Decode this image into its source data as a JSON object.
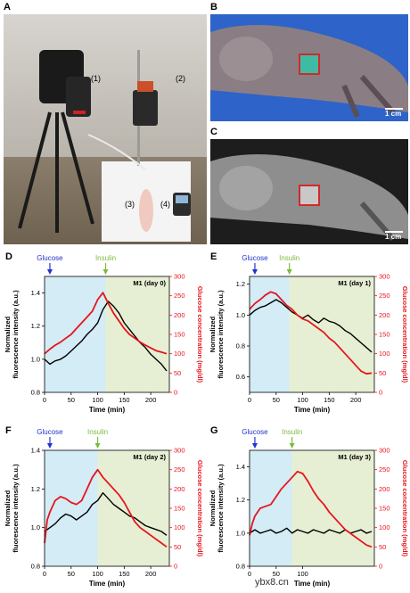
{
  "panels": {
    "A": {
      "letter": "A",
      "labels": [
        "(1)",
        "(2)",
        "(3)",
        "(4)"
      ]
    },
    "B": {
      "letter": "B",
      "scale": "1 cm"
    },
    "C": {
      "letter": "C",
      "scale": "1 cm"
    }
  },
  "arrows": {
    "glucose": "Glucose",
    "insulin": "Insulin"
  },
  "colors": {
    "fluor": "#000000",
    "glucose": "#e8141c",
    "glucose_bg": "#d3ecf6",
    "insulin_bg": "#e6efd3",
    "arrow_glucose": "#2233cc",
    "arrow_insulin": "#7dbb3c"
  },
  "chart_data": [
    {
      "panel": "D",
      "type": "line",
      "title": "M1 (day 0)",
      "xlabel": "Time (min)",
      "ylabel": "Normalized fluorescence intensity (a.u.)",
      "y2label": "Glucose concentration (mg/dl)",
      "xlim": [
        0,
        235
      ],
      "ylim": [
        0.8,
        1.5
      ],
      "y2lim": [
        0,
        300
      ],
      "xticks": [
        0,
        50,
        100,
        150,
        200
      ],
      "yticks": [
        0.8,
        1.0,
        1.2,
        1.4
      ],
      "y2ticks": [
        0,
        50,
        100,
        150,
        200,
        250,
        300
      ],
      "glucose_at": 10,
      "insulin_at": 115,
      "series": [
        {
          "axis": "left",
          "color": "#000000",
          "x": [
            0,
            10,
            20,
            30,
            40,
            50,
            60,
            70,
            80,
            90,
            100,
            110,
            120,
            130,
            140,
            150,
            160,
            170,
            180,
            190,
            200,
            210,
            220,
            230
          ],
          "y": [
            1.0,
            0.97,
            0.99,
            1.0,
            1.02,
            1.05,
            1.08,
            1.11,
            1.15,
            1.18,
            1.22,
            1.3,
            1.35,
            1.32,
            1.28,
            1.22,
            1.18,
            1.14,
            1.1,
            1.07,
            1.03,
            1.0,
            0.97,
            0.93
          ]
        },
        {
          "axis": "right",
          "color": "#e8141c",
          "x": [
            0,
            10,
            20,
            30,
            40,
            50,
            60,
            70,
            80,
            90,
            100,
            110,
            120,
            130,
            140,
            150,
            160,
            170,
            180,
            190,
            200,
            210,
            220,
            230
          ],
          "y": [
            100,
            112,
            122,
            130,
            140,
            150,
            165,
            180,
            195,
            210,
            240,
            258,
            230,
            205,
            185,
            165,
            150,
            140,
            130,
            122,
            115,
            108,
            104,
            100
          ]
        }
      ]
    },
    {
      "panel": "E",
      "type": "line",
      "title": "M1 (day 1)",
      "xlabel": "Time (min)",
      "ylabel": "Normalized fluorescence intensity (a.u.)",
      "y2label": "Glucose concentration (mg/dl)",
      "xlim": [
        0,
        235
      ],
      "ylim": [
        0.5,
        1.25
      ],
      "y2lim": [
        0,
        300
      ],
      "xticks": [
        0,
        50,
        100,
        150,
        200
      ],
      "yticks": [
        0.6,
        0.8,
        1.0,
        1.2
      ],
      "y2ticks": [
        0,
        50,
        100,
        150,
        200,
        250,
        300
      ],
      "glucose_at": 10,
      "insulin_at": 75,
      "series": [
        {
          "axis": "left",
          "color": "#000000",
          "x": [
            0,
            10,
            20,
            30,
            40,
            50,
            60,
            70,
            80,
            90,
            100,
            110,
            120,
            130,
            140,
            150,
            160,
            170,
            180,
            190,
            200,
            210,
            220,
            230
          ],
          "y": [
            1.0,
            1.03,
            1.05,
            1.06,
            1.08,
            1.1,
            1.08,
            1.05,
            1.02,
            1.0,
            0.98,
            1.0,
            0.97,
            0.95,
            0.98,
            0.96,
            0.95,
            0.93,
            0.9,
            0.88,
            0.85,
            0.82,
            0.79,
            0.76
          ]
        },
        {
          "axis": "right",
          "color": "#e8141c",
          "x": [
            0,
            10,
            20,
            30,
            40,
            50,
            60,
            70,
            80,
            90,
            100,
            110,
            120,
            130,
            140,
            150,
            160,
            170,
            180,
            190,
            200,
            210,
            220,
            230
          ],
          "y": [
            215,
            230,
            240,
            252,
            260,
            255,
            240,
            225,
            215,
            200,
            190,
            185,
            175,
            165,
            155,
            140,
            130,
            115,
            100,
            85,
            70,
            55,
            48,
            50
          ]
        }
      ]
    },
    {
      "panel": "F",
      "type": "line",
      "title": "M1 (day 2)",
      "xlabel": "Time (min)",
      "ylabel": "Normalized fluorescence intensity (a.u.)",
      "y2label": "Glucose concentration (mg/dl)",
      "xlim": [
        0,
        235
      ],
      "ylim": [
        0.8,
        1.4
      ],
      "y2lim": [
        0,
        300
      ],
      "xticks": [
        0,
        50,
        100,
        150,
        200
      ],
      "yticks": [
        0.8,
        1.0,
        1.2,
        1.4
      ],
      "y2ticks": [
        0,
        50,
        100,
        150,
        200,
        250,
        300
      ],
      "glucose_at": 10,
      "insulin_at": 100,
      "series": [
        {
          "axis": "left",
          "color": "#000000",
          "x": [
            0,
            10,
            20,
            30,
            40,
            50,
            60,
            70,
            80,
            90,
            100,
            110,
            120,
            130,
            140,
            150,
            160,
            170,
            180,
            190,
            200,
            210,
            220,
            230
          ],
          "y": [
            0.98,
            1.0,
            1.02,
            1.05,
            1.07,
            1.06,
            1.04,
            1.06,
            1.08,
            1.12,
            1.14,
            1.18,
            1.15,
            1.12,
            1.1,
            1.08,
            1.06,
            1.05,
            1.03,
            1.01,
            1.0,
            0.99,
            0.98,
            0.96
          ]
        },
        {
          "axis": "right",
          "color": "#e8141c",
          "x": [
            0,
            5,
            10,
            20,
            30,
            40,
            50,
            60,
            70,
            80,
            90,
            100,
            110,
            120,
            130,
            140,
            150,
            160,
            170,
            180,
            190,
            200,
            210,
            220,
            230
          ],
          "y": [
            60,
            120,
            140,
            170,
            180,
            175,
            165,
            160,
            170,
            200,
            230,
            250,
            230,
            215,
            200,
            185,
            165,
            140,
            115,
            100,
            90,
            80,
            70,
            60,
            50
          ]
        }
      ]
    },
    {
      "panel": "G",
      "type": "line",
      "title": "M1 (day 3)",
      "xlabel": "Time (min)",
      "ylabel": "Normalized fluorescence intensity (a.u.)",
      "y2label": "Glucose concentration (mg/dl)",
      "xlim": [
        0,
        235
      ],
      "ylim": [
        0.8,
        1.5
      ],
      "y2lim": [
        0,
        300
      ],
      "xticks": [
        0,
        50,
        100
      ],
      "yticks": [
        0.8,
        1.0,
        1.2,
        1.4
      ],
      "y2ticks": [
        0,
        50,
        100,
        150,
        200,
        250,
        300
      ],
      "glucose_at": 10,
      "insulin_at": 80,
      "series": [
        {
          "axis": "left",
          "color": "#000000",
          "x": [
            0,
            10,
            20,
            30,
            40,
            50,
            60,
            70,
            80,
            90,
            100,
            110,
            120,
            130,
            140,
            150,
            160,
            170,
            180,
            190,
            200,
            210,
            220,
            230
          ],
          "y": [
            1.0,
            1.02,
            1.0,
            1.01,
            1.02,
            1.0,
            1.01,
            1.03,
            1.0,
            1.02,
            1.01,
            1.0,
            1.02,
            1.01,
            1.0,
            1.02,
            1.01,
            1.0,
            1.02,
            1.0,
            1.01,
            1.02,
            1.0,
            1.01
          ]
        },
        {
          "axis": "right",
          "color": "#e8141c",
          "x": [
            0,
            5,
            10,
            20,
            30,
            40,
            50,
            60,
            70,
            80,
            90,
            100,
            110,
            120,
            130,
            140,
            150,
            160,
            170,
            180,
            190,
            200,
            210,
            220,
            230
          ],
          "y": [
            80,
            110,
            130,
            150,
            155,
            160,
            180,
            200,
            215,
            230,
            245,
            240,
            220,
            195,
            175,
            160,
            140,
            125,
            110,
            95,
            85,
            75,
            65,
            55,
            50
          ]
        }
      ]
    }
  ],
  "watermark": "ybx8.cn"
}
